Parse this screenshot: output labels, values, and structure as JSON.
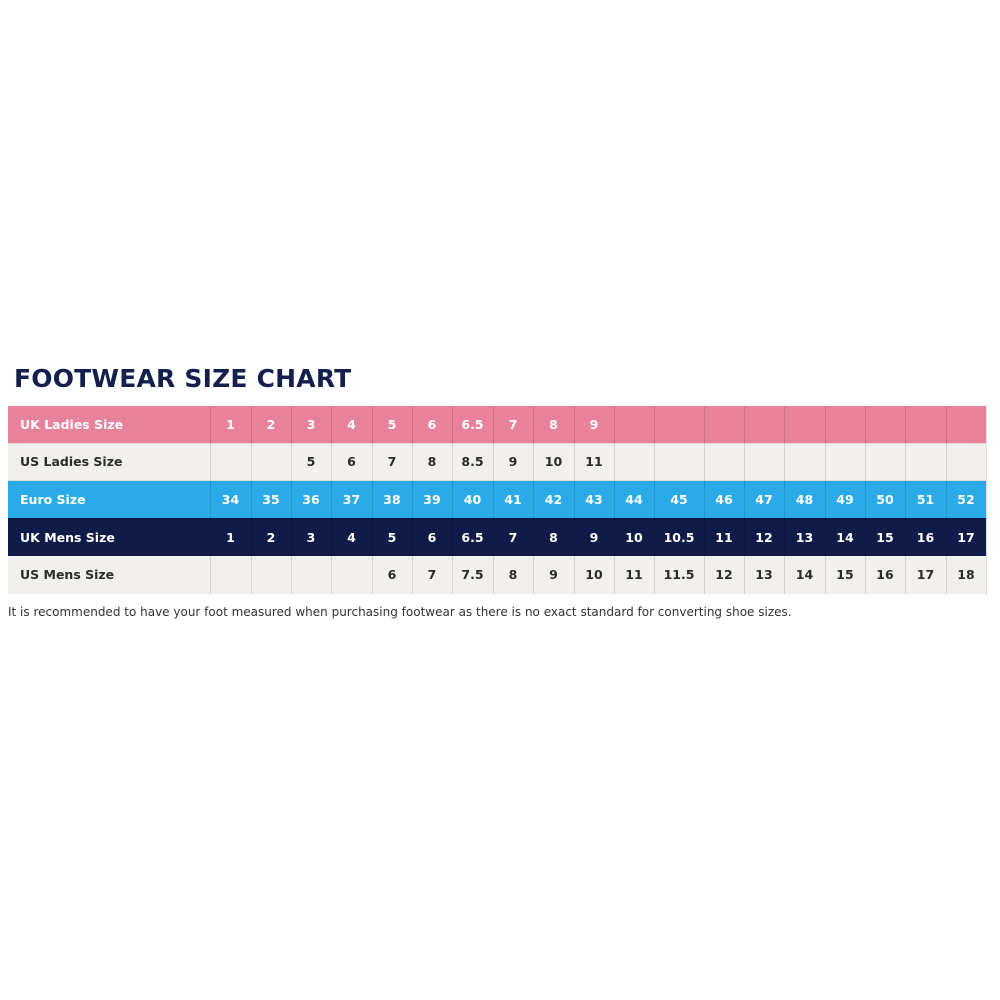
{
  "title": "FOOTWEAR SIZE CHART",
  "colors": {
    "uk_ladies": "#e8819a",
    "us_rows": "#f1f0ec",
    "euro": "#2aabe8",
    "uk_mens": "#0f1c4a",
    "title": "#13204d"
  },
  "rows": [
    {
      "label": "UK Ladies Size",
      "style": "pink",
      "values": [
        "1",
        "2",
        "3",
        "4",
        "5",
        "6",
        "6.5",
        "7",
        "8",
        "9",
        "",
        "",
        "",
        "",
        "",
        "",
        "",
        "",
        ""
      ]
    },
    {
      "label": "US Ladies Size",
      "style": "gray",
      "values": [
        "",
        "",
        "5",
        "6",
        "7",
        "8",
        "8.5",
        "9",
        "10",
        "11",
        "",
        "",
        "",
        "",
        "",
        "",
        "",
        "",
        ""
      ]
    },
    {
      "label": "Euro Size",
      "style": "blue",
      "values": [
        "34",
        "35",
        "36",
        "37",
        "38",
        "39",
        "40",
        "41",
        "42",
        "43",
        "44",
        "45",
        "46",
        "47",
        "48",
        "49",
        "50",
        "51",
        "52"
      ]
    },
    {
      "label": "UK Mens Size",
      "style": "navy",
      "values": [
        "1",
        "2",
        "3",
        "4",
        "5",
        "6",
        "6.5",
        "7",
        "8",
        "9",
        "10",
        "10.5",
        "11",
        "12",
        "13",
        "14",
        "15",
        "16",
        "17"
      ]
    },
    {
      "label": "US Mens Size",
      "style": "gray",
      "values": [
        "",
        "",
        "",
        "",
        "6",
        "7",
        "7.5",
        "8",
        "9",
        "10",
        "11",
        "11.5",
        "12",
        "13",
        "14",
        "15",
        "16",
        "17",
        "18"
      ]
    }
  ],
  "note": "It is recommended to have your foot measured when purchasing footwear as there is no exact standard for converting shoe sizes."
}
